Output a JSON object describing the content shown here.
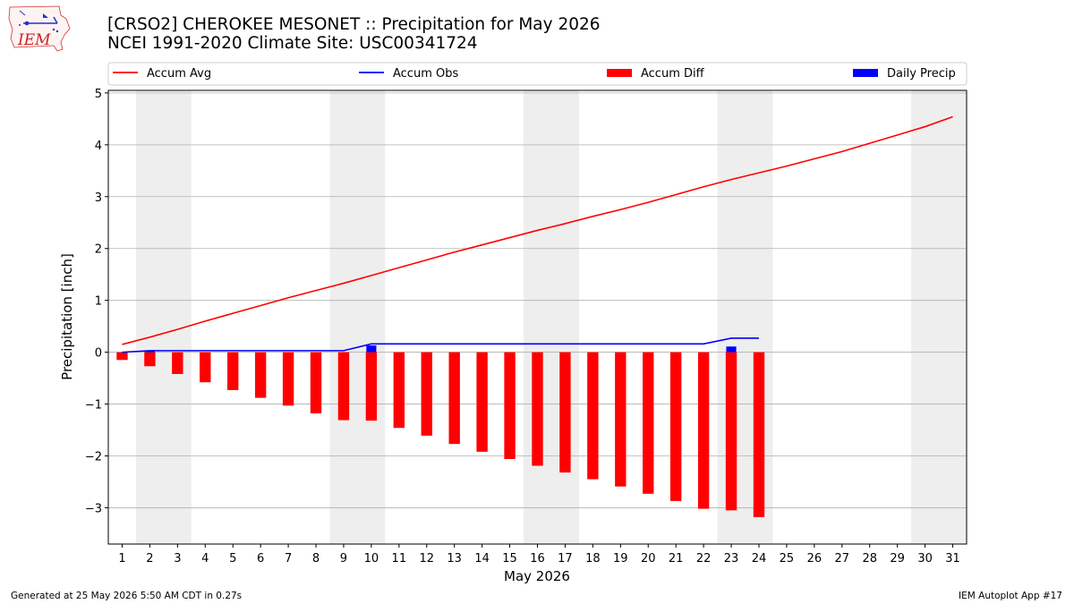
{
  "header": {
    "logo_text": "IEM",
    "title_line1": "[CRSO2] CHEROKEE MESONET :: Precipitation for May 2026",
    "title_line2": "NCEI 1991-2020 Climate Site: USC00341724"
  },
  "footer": {
    "generated": "Generated at 25 May 2026 5:50 AM CDT in 0.27s",
    "app": "IEM Autoplot App #17"
  },
  "colors": {
    "accum_avg": "#ff0000",
    "accum_obs": "#0000ff",
    "accum_diff": "#ff0000",
    "daily_precip": "#0000ff",
    "weekend_shade": "#eeeeee",
    "grid": "#b0b0b0"
  },
  "chart_data": {
    "type": "bar",
    "xlabel": "May 2026",
    "ylabel": "Precipitation [inch]",
    "ylim": [
      -3.7,
      5.05
    ],
    "xlim": [
      0.5,
      31.5
    ],
    "yticks": [
      -3,
      -2,
      -1,
      0,
      1,
      2,
      3,
      4,
      5
    ],
    "ytick_labels": [
      "−3",
      "−2",
      "−1",
      "0",
      "1",
      "2",
      "3",
      "4",
      "5"
    ],
    "days": [
      1,
      2,
      3,
      4,
      5,
      6,
      7,
      8,
      9,
      10,
      11,
      12,
      13,
      14,
      15,
      16,
      17,
      18,
      19,
      20,
      21,
      22,
      23,
      24,
      25,
      26,
      27,
      28,
      29,
      30,
      31
    ],
    "grid": "horizontal",
    "legend_position": "top",
    "weekend_spans": [
      [
        1.5,
        3.5
      ],
      [
        8.5,
        10.5
      ],
      [
        15.5,
        17.5
      ],
      [
        22.5,
        24.5
      ],
      [
        29.5,
        31.5
      ]
    ],
    "series": [
      {
        "name": "Accum Avg",
        "kind": "line",
        "values": [
          0.15,
          0.29,
          0.44,
          0.6,
          0.75,
          0.9,
          1.05,
          1.19,
          1.33,
          1.48,
          1.63,
          1.78,
          1.93,
          2.07,
          2.21,
          2.35,
          2.48,
          2.62,
          2.75,
          2.89,
          3.04,
          3.19,
          3.33,
          3.46,
          3.59,
          3.73,
          3.87,
          4.03,
          4.19,
          4.35,
          4.54
        ]
      },
      {
        "name": "Accum Obs",
        "kind": "line",
        "values": [
          0.0,
          0.03,
          0.03,
          0.03,
          0.03,
          0.03,
          0.03,
          0.03,
          0.03,
          0.16,
          0.16,
          0.16,
          0.16,
          0.16,
          0.16,
          0.16,
          0.16,
          0.16,
          0.16,
          0.16,
          0.16,
          0.16,
          0.27,
          0.27
        ]
      },
      {
        "name": "Accum Diff",
        "kind": "bar",
        "values": [
          -0.15,
          -0.27,
          -0.42,
          -0.58,
          -0.73,
          -0.88,
          -1.03,
          -1.18,
          -1.31,
          -1.32,
          -1.46,
          -1.61,
          -1.77,
          -1.92,
          -2.06,
          -2.19,
          -2.32,
          -2.45,
          -2.59,
          -2.73,
          -2.87,
          -3.02,
          -3.05,
          -3.18
        ]
      },
      {
        "name": "Daily Precip",
        "kind": "bar",
        "values": [
          0.0,
          0.03,
          0.0,
          0.0,
          0.0,
          0.0,
          0.0,
          0.0,
          0.0,
          0.13,
          0.0,
          0.0,
          0.0,
          0.0,
          0.0,
          0.0,
          0.0,
          0.0,
          0.0,
          0.0,
          0.0,
          0.0,
          0.11,
          0.0
        ]
      }
    ]
  }
}
